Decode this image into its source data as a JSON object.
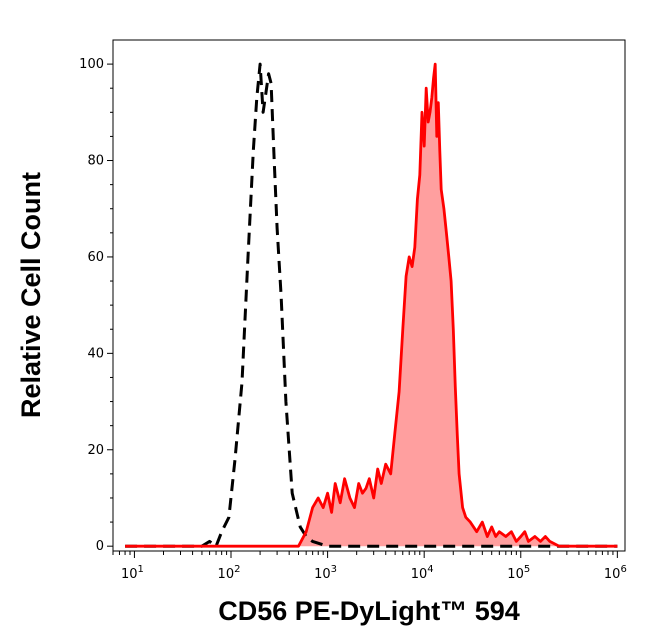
{
  "chart_data": {
    "type": "area",
    "title": "",
    "xlabel": "CD56 PE-DyLight™ 594",
    "ylabel": "Relative Cell Count",
    "x_scale": "log",
    "xlim": [
      6,
      1200000
    ],
    "ylim": [
      -1,
      105
    ],
    "x_ticks": [
      {
        "value": 10,
        "base": "10",
        "exp": "1"
      },
      {
        "value": 100,
        "base": "10",
        "exp": "2"
      },
      {
        "value": 1000,
        "base": "10",
        "exp": "3"
      },
      {
        "value": 10000,
        "base": "10",
        "exp": "4"
      },
      {
        "value": 100000,
        "base": "10",
        "exp": "5"
      },
      {
        "value": 1000000,
        "base": "10",
        "exp": "6"
      }
    ],
    "y_ticks": [
      0,
      20,
      40,
      60,
      80,
      100
    ],
    "grid": false,
    "legend": "none",
    "series": [
      {
        "style": "dashed",
        "color": "#000000",
        "fill": "none",
        "x": [
          8,
          50,
          60,
          70,
          80,
          95,
          110,
          130,
          150,
          170,
          185,
          200,
          215,
          230,
          245,
          260,
          280,
          300,
          330,
          370,
          430,
          520,
          600,
          700,
          1000,
          1000000
        ],
        "y": [
          0,
          0,
          1,
          0,
          3,
          6,
          18,
          34,
          60,
          82,
          93,
          100,
          90,
          94,
          98,
          96,
          80,
          66,
          52,
          30,
          11,
          4,
          2,
          1,
          0,
          0
        ]
      },
      {
        "style": "solid",
        "color": "#ff0000",
        "fill": "#ff9f9f",
        "x": [
          8,
          500,
          600,
          700,
          800,
          900,
          1000,
          1100,
          1200,
          1350,
          1500,
          1700,
          1900,
          2100,
          2300,
          2500,
          2700,
          3000,
          3300,
          3600,
          4000,
          4500,
          5000,
          5500,
          6000,
          6500,
          7000,
          7500,
          8000,
          8500,
          9000,
          9500,
          10000,
          10500,
          11000,
          11500,
          12000,
          12500,
          13000,
          13500,
          14000,
          14500,
          15000,
          16000,
          17000,
          18000,
          19000,
          20000,
          21000,
          22000,
          23000,
          25000,
          27000,
          30000,
          35000,
          40000,
          45000,
          50000,
          55000,
          60000,
          70000,
          80000,
          90000,
          100000,
          110000,
          120000,
          140000,
          160000,
          180000,
          200000,
          250000,
          1000000
        ],
        "y": [
          0,
          0,
          3,
          8,
          10,
          8,
          11,
          7,
          13,
          9,
          14,
          10,
          8,
          13,
          11,
          12,
          14,
          10,
          16,
          13,
          17,
          15,
          24,
          32,
          45,
          56,
          60,
          58,
          62,
          72,
          77,
          90,
          83,
          95,
          88,
          90,
          93,
          97,
          100,
          85,
          92,
          82,
          74,
          70,
          65,
          60,
          55,
          45,
          33,
          23,
          15,
          8,
          6,
          5,
          3,
          5,
          2,
          4,
          2,
          3,
          2,
          3,
          1,
          2,
          3,
          1,
          2,
          1,
          2,
          1,
          0,
          0
        ]
      }
    ]
  }
}
